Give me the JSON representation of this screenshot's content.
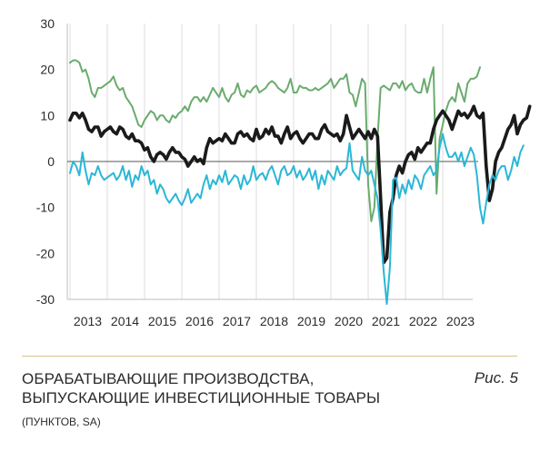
{
  "chart_data": {
    "type": "line",
    "title": "ОБРАБАТЫВАЮЩИЕ ПРОИЗВОДСТВА, ВЫПУСКАЮЩИЕ ИНВЕСТИЦИОННЫЕ ТОВАРЫ",
    "subtitle": "(ПУНКТОВ, SA)",
    "xlabel": "",
    "ylabel": "",
    "x_start": "2013-01",
    "x_end": "2023-04",
    "x_tick_labels": [
      "2013",
      "2014",
      "2015",
      "2016",
      "2017",
      "2018",
      "2019",
      "2020",
      "2021",
      "2022",
      "2023"
    ],
    "y_ticks": [
      30,
      20,
      10,
      0,
      -10,
      -20,
      -30
    ],
    "ylim": [
      -30,
      30
    ],
    "grid": "vertical",
    "legend": "none",
    "series": [
      {
        "color": "#6aab6e",
        "values": [
          21.5,
          22,
          22,
          21.5,
          19.5,
          20,
          18,
          15,
          14,
          16,
          16,
          16.5,
          17,
          17.5,
          18.5,
          16.5,
          15.5,
          16,
          14,
          13,
          12,
          10,
          8,
          7.5,
          9,
          10,
          11,
          10.5,
          9,
          10,
          10,
          9,
          8.5,
          10,
          9.5,
          10.5,
          11,
          12,
          11,
          13,
          14,
          14,
          13,
          14,
          13,
          14.5,
          16,
          15,
          14,
          16,
          14,
          13,
          14.5,
          15,
          17,
          14.5,
          14,
          15.5,
          15,
          16,
          16.5,
          15,
          15.5,
          16,
          17,
          17.5,
          17,
          16,
          15.5,
          15,
          16,
          18,
          15,
          15,
          16.5,
          16,
          16,
          15.5,
          15.5,
          16,
          15.5,
          16,
          16.5,
          17,
          18,
          16,
          17,
          18,
          18,
          19,
          15,
          14.5,
          12,
          15,
          18,
          17,
          -5,
          -13,
          -10,
          5,
          16,
          16.5,
          16,
          15.5,
          17,
          17,
          16,
          17.5,
          15.5,
          16.5,
          17,
          15.5,
          15,
          15,
          18,
          15,
          18,
          20.5,
          -7,
          5,
          8,
          11,
          13,
          14,
          13,
          17,
          15,
          13,
          17,
          18,
          18,
          18.5,
          20.5
        ]
      },
      {
        "color": "#1a1a1a",
        "values": [
          9,
          10.5,
          10.5,
          9.5,
          10.5,
          9,
          7,
          6.5,
          7.5,
          7.5,
          5.5,
          6.5,
          7,
          7.5,
          6.5,
          6,
          7.5,
          7,
          5.5,
          5,
          6,
          4.5,
          4.5,
          4,
          2.5,
          3,
          1,
          0,
          1.5,
          2,
          1.5,
          0.5,
          2,
          3,
          2,
          2,
          1,
          0.5,
          -1,
          0,
          1,
          0,
          0.5,
          -0.5,
          3,
          5,
          4,
          4.5,
          5,
          4.5,
          6,
          5,
          4,
          4,
          6,
          6.5,
          5.5,
          6,
          5,
          4.5,
          7,
          5,
          5.5,
          7,
          6,
          7.5,
          5.5,
          5.5,
          4,
          6,
          7.5,
          5,
          6,
          6.5,
          5,
          4,
          5,
          6,
          6,
          5,
          5,
          7,
          8,
          6.5,
          6,
          5.5,
          6,
          4.5,
          6,
          10,
          7.5,
          5,
          6,
          7,
          6,
          5,
          6.5,
          5,
          7,
          5.5,
          -8,
          -22,
          -21,
          -11,
          -8,
          -3,
          -1,
          -2.5,
          0,
          1.5,
          2,
          0.5,
          3,
          2,
          3,
          4,
          4,
          7,
          9,
          10,
          11,
          10,
          9,
          7,
          9,
          11,
          10,
          10.5,
          9.5,
          10.5,
          12,
          10,
          9.5,
          10.5,
          -1,
          -8.5,
          -6,
          0,
          2,
          3,
          5,
          7,
          8,
          10,
          6,
          8,
          9,
          9.5,
          12
        ]
      },
      {
        "color": "#2bb7d6",
        "values": [
          -2.5,
          0,
          -1,
          -3,
          2,
          -2,
          -5,
          -2.5,
          -3,
          -1,
          -3,
          -4,
          -3.5,
          -3,
          -2.5,
          -4,
          -3,
          -1,
          -4,
          -2,
          -5.5,
          -3,
          -4,
          -1,
          -3,
          -2,
          -5,
          -4,
          -7,
          -5,
          -6,
          -8,
          -9,
          -8,
          -7,
          -8.5,
          -9.5,
          -8,
          -6,
          -9,
          -8,
          -7,
          -8,
          -5,
          -3,
          -6,
          -4,
          -5,
          -3,
          -4.5,
          -2,
          -5,
          -4,
          -3,
          -3.5,
          -6,
          -3,
          -5,
          -4,
          -1,
          -4,
          -3,
          -2.5,
          -4,
          -2,
          -1,
          -3,
          -5,
          -2,
          -1,
          -3,
          -2.5,
          -1,
          -3.5,
          -2,
          -4,
          -3,
          -1.5,
          -4,
          -2,
          -6,
          -3,
          -5,
          -2,
          -3,
          -4,
          -1,
          -3,
          -2,
          -1.5,
          4,
          -2,
          -3,
          -4,
          1,
          -2,
          -3,
          -2,
          -5,
          -8,
          -15,
          -24,
          -31,
          -23,
          -4,
          -3.5,
          -8,
          -5,
          -7,
          -4,
          -6,
          -3,
          -4,
          -6,
          -3,
          -2,
          -1,
          -3,
          -2,
          3,
          6,
          3,
          1,
          1,
          2,
          0,
          2,
          -1,
          1,
          3,
          1.5,
          -3,
          -10,
          -13.5,
          -9,
          -5,
          -3,
          -4,
          -2,
          -1,
          -1,
          -4,
          -2,
          1,
          -1,
          2,
          3.5
        ]
      }
    ]
  },
  "caption": {
    "title_line1": "ОБРАБАТЫВАЮЩИЕ ПРОИЗВОДСТВА,",
    "title_line2": "ВЫПУСКАЮЩИЕ ИНВЕСТИЦИОННЫЕ ТОВАРЫ",
    "subtitle": "(ПУНКТОВ, SA)",
    "figure_label": "Рис. 5"
  }
}
